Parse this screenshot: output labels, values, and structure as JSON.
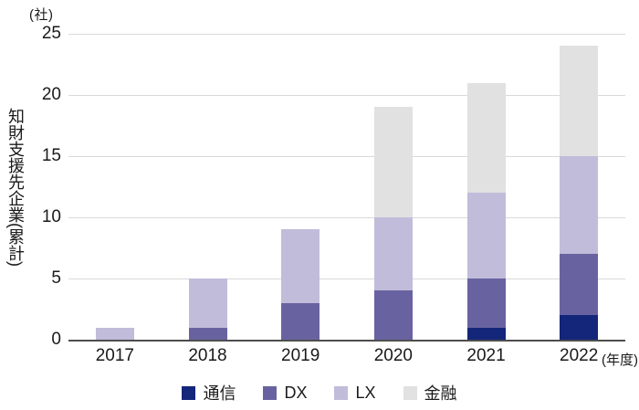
{
  "chart": {
    "unit_label": "(社)",
    "y_axis_title": "知財支援先企業(累計)",
    "x_axis_suffix": "(年度)"
  },
  "chart_data": {
    "type": "bar",
    "stacked": true,
    "title": "",
    "categories": [
      "2017",
      "2018",
      "2019",
      "2020",
      "2021",
      "2022"
    ],
    "series": [
      {
        "key": "telecom",
        "name": "通信",
        "color": "#132679",
        "values": [
          0,
          0,
          0,
          0,
          1,
          2
        ]
      },
      {
        "key": "dx",
        "name": "DX",
        "color": "#6863a0",
        "values": [
          0,
          1,
          3,
          4,
          4,
          5
        ]
      },
      {
        "key": "lx",
        "name": "LX",
        "color": "#c1bcda",
        "values": [
          1,
          4,
          6,
          6,
          7,
          8
        ]
      },
      {
        "key": "finance",
        "name": "金融",
        "color": "#e1e1e1",
        "values": [
          0,
          0,
          0,
          9,
          9,
          9
        ]
      }
    ],
    "totals": [
      1,
      5,
      9,
      19,
      21,
      24
    ],
    "ylabel": "知財支援先企業(累計)",
    "xlabel": "年度",
    "y_unit": "社",
    "ylim": [
      0,
      25
    ],
    "yticks": [
      0,
      5,
      10,
      15,
      20,
      25
    ],
    "grid": true,
    "legend": [
      "通信",
      "DX",
      "LX",
      "金融"
    ],
    "legend_position": "bottom"
  },
  "colors": {
    "background": "#ffffff",
    "text": "#1a1a1a",
    "gridline": "#d9d9d9",
    "axis_line": "#4d4d4d"
  }
}
